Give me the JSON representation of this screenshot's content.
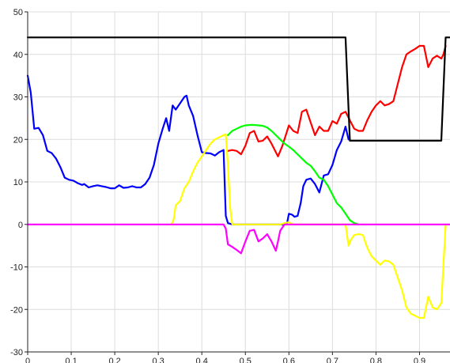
{
  "chart_data": {
    "type": "line",
    "title": "",
    "xlabel": "",
    "ylabel": "",
    "xlim": [
      0,
      0.97
    ],
    "ylim": [
      -30,
      50
    ],
    "grid": true,
    "legend": "none",
    "x_ticks": [
      0,
      0.1,
      0.2,
      0.3,
      0.4,
      0.5,
      0.6,
      0.7,
      0.8,
      0.9
    ],
    "x_tick_labels": [
      "0",
      "0.1",
      "0.2",
      "0.3",
      "0.4",
      "0.5",
      "0.6",
      "0.7",
      "0.8",
      "0.9"
    ],
    "y_ticks": [
      -30,
      -20,
      -10,
      0,
      10,
      20,
      30,
      40,
      50
    ],
    "y_tick_labels": [
      "-30",
      "-20",
      "-10",
      "0",
      "10",
      "20",
      "30",
      "40",
      "50"
    ],
    "series": [
      {
        "color": "#0000ff",
        "points": [
          [
            0,
            35
          ],
          [
            0.007,
            31
          ],
          [
            0.015,
            22.5
          ],
          [
            0.025,
            22.7
          ],
          [
            0.035,
            21
          ],
          [
            0.045,
            17.3
          ],
          [
            0.055,
            16.8
          ],
          [
            0.065,
            15.5
          ],
          [
            0.075,
            13.5
          ],
          [
            0.085,
            11
          ],
          [
            0.095,
            10.5
          ],
          [
            0.105,
            10.3
          ],
          [
            0.115,
            9.7
          ],
          [
            0.125,
            9.3
          ],
          [
            0.13,
            9.5
          ],
          [
            0.14,
            8.7
          ],
          [
            0.15,
            9
          ],
          [
            0.16,
            9.2
          ],
          [
            0.17,
            9
          ],
          [
            0.18,
            8.8
          ],
          [
            0.19,
            8.5
          ],
          [
            0.2,
            8.5
          ],
          [
            0.21,
            9.2
          ],
          [
            0.22,
            8.6
          ],
          [
            0.23,
            8.7
          ],
          [
            0.24,
            9
          ],
          [
            0.25,
            8.7
          ],
          [
            0.26,
            8.7
          ],
          [
            0.27,
            9.5
          ],
          [
            0.28,
            11
          ],
          [
            0.29,
            14
          ],
          [
            0.3,
            19
          ],
          [
            0.31,
            22.5
          ],
          [
            0.318,
            25
          ],
          [
            0.325,
            22
          ],
          [
            0.333,
            28
          ],
          [
            0.34,
            27
          ],
          [
            0.35,
            28.5
          ],
          [
            0.36,
            30
          ],
          [
            0.365,
            30.3
          ],
          [
            0.37,
            28
          ],
          [
            0.38,
            25.5
          ],
          [
            0.39,
            21
          ],
          [
            0.4,
            17
          ],
          [
            0.41,
            16.8
          ],
          [
            0.42,
            16.7
          ],
          [
            0.43,
            16.2
          ],
          [
            0.44,
            17
          ],
          [
            0.45,
            17.5
          ],
          [
            0.455,
            2
          ],
          [
            0.46,
            0.3
          ],
          [
            0.47,
            0
          ],
          [
            0.595,
            0
          ],
          [
            0.6,
            2.5
          ],
          [
            0.607,
            2.3
          ],
          [
            0.613,
            1.8
          ],
          [
            0.62,
            2
          ],
          [
            0.627,
            5
          ],
          [
            0.633,
            9
          ],
          [
            0.64,
            10.5
          ],
          [
            0.65,
            10.8
          ],
          [
            0.66,
            9.5
          ],
          [
            0.67,
            7.5
          ],
          [
            0.68,
            11.5
          ],
          [
            0.69,
            11.8
          ],
          [
            0.7,
            14
          ],
          [
            0.71,
            17.5
          ],
          [
            0.72,
            19.5
          ],
          [
            0.73,
            23
          ],
          [
            0.737,
            20
          ]
        ]
      },
      {
        "color": "#ff0000",
        "points": [
          [
            0.46,
            17.3
          ],
          [
            0.47,
            17.5
          ],
          [
            0.48,
            17.3
          ],
          [
            0.49,
            16.5
          ],
          [
            0.5,
            18.5
          ],
          [
            0.51,
            21.5
          ],
          [
            0.52,
            22
          ],
          [
            0.53,
            19.5
          ],
          [
            0.54,
            19.7
          ],
          [
            0.55,
            20.7
          ],
          [
            0.56,
            19
          ],
          [
            0.575,
            16
          ],
          [
            0.585,
            18.5
          ],
          [
            0.6,
            23.3
          ],
          [
            0.61,
            22
          ],
          [
            0.62,
            21.5
          ],
          [
            0.63,
            26.5
          ],
          [
            0.64,
            27
          ],
          [
            0.65,
            24
          ],
          [
            0.66,
            21
          ],
          [
            0.67,
            23
          ],
          [
            0.68,
            22
          ],
          [
            0.69,
            22
          ],
          [
            0.7,
            24.3
          ],
          [
            0.71,
            23.7
          ],
          [
            0.72,
            26
          ],
          [
            0.73,
            26.5
          ],
          [
            0.74,
            24.5
          ],
          [
            0.75,
            22.5
          ],
          [
            0.76,
            22
          ],
          [
            0.77,
            22
          ],
          [
            0.78,
            24.5
          ],
          [
            0.79,
            26.5
          ],
          [
            0.8,
            28
          ],
          [
            0.81,
            29
          ],
          [
            0.82,
            28
          ],
          [
            0.83,
            28.3
          ],
          [
            0.84,
            29
          ],
          [
            0.85,
            33
          ],
          [
            0.86,
            37
          ],
          [
            0.87,
            40
          ],
          [
            0.88,
            40.7
          ],
          [
            0.89,
            41.3
          ],
          [
            0.9,
            42
          ],
          [
            0.91,
            42
          ],
          [
            0.92,
            37
          ],
          [
            0.93,
            39
          ],
          [
            0.94,
            39.7
          ],
          [
            0.95,
            39
          ],
          [
            0.955,
            40
          ],
          [
            0.96,
            42
          ]
        ]
      },
      {
        "color": "#00ff00",
        "points": [
          [
            0.46,
            21
          ],
          [
            0.47,
            22
          ],
          [
            0.48,
            22.5
          ],
          [
            0.49,
            23
          ],
          [
            0.5,
            23.3
          ],
          [
            0.51,
            23.4
          ],
          [
            0.52,
            23.4
          ],
          [
            0.53,
            23.3
          ],
          [
            0.54,
            23.2
          ],
          [
            0.55,
            22.8
          ],
          [
            0.56,
            22
          ],
          [
            0.57,
            21
          ],
          [
            0.58,
            20
          ],
          [
            0.59,
            19
          ],
          [
            0.6,
            18.3
          ],
          [
            0.61,
            17.5
          ],
          [
            0.62,
            16.5
          ],
          [
            0.63,
            15.5
          ],
          [
            0.64,
            14.5
          ],
          [
            0.65,
            13.8
          ],
          [
            0.66,
            12.5
          ],
          [
            0.67,
            11
          ],
          [
            0.68,
            10.5
          ],
          [
            0.69,
            9
          ],
          [
            0.7,
            7
          ],
          [
            0.71,
            5
          ],
          [
            0.72,
            4
          ],
          [
            0.73,
            2.5
          ],
          [
            0.74,
            1
          ],
          [
            0.75,
            0.3
          ],
          [
            0.76,
            0
          ]
        ]
      },
      {
        "color": "#ffff00",
        "points": [
          [
            0.33,
            0
          ],
          [
            0.335,
            1
          ],
          [
            0.34,
            4.5
          ],
          [
            0.35,
            5.5
          ],
          [
            0.36,
            8.5
          ],
          [
            0.37,
            10
          ],
          [
            0.38,
            12.5
          ],
          [
            0.39,
            14.5
          ],
          [
            0.4,
            16
          ],
          [
            0.41,
            17.5
          ],
          [
            0.42,
            19
          ],
          [
            0.43,
            20
          ],
          [
            0.44,
            20.5
          ],
          [
            0.45,
            21
          ],
          [
            0.455,
            21.2
          ],
          [
            0.46,
            14
          ],
          [
            0.465,
            4
          ],
          [
            0.47,
            0
          ],
          [
            0.58,
            0
          ],
          [
            0.59,
            0.3
          ],
          [
            0.6,
            0.5
          ],
          [
            0.61,
            0
          ],
          [
            0.73,
            0
          ],
          [
            0.737,
            -5
          ],
          [
            0.743,
            -3.5
          ],
          [
            0.75,
            -2.5
          ],
          [
            0.76,
            -2.3
          ],
          [
            0.77,
            -2.5
          ],
          [
            0.78,
            -5.5
          ],
          [
            0.79,
            -7.5
          ],
          [
            0.8,
            -8.5
          ],
          [
            0.81,
            -9.5
          ],
          [
            0.82,
            -8.5
          ],
          [
            0.83,
            -8.7
          ],
          [
            0.84,
            -9.5
          ],
          [
            0.85,
            -12.5
          ],
          [
            0.86,
            -15.5
          ],
          [
            0.87,
            -19.5
          ],
          [
            0.88,
            -21
          ],
          [
            0.89,
            -21.5
          ],
          [
            0.9,
            -22
          ],
          [
            0.91,
            -22
          ],
          [
            0.92,
            -17
          ],
          [
            0.93,
            -19.5
          ],
          [
            0.94,
            -20
          ],
          [
            0.95,
            -18.5
          ],
          [
            0.96,
            0
          ]
        ]
      },
      {
        "color": "#ff00ff",
        "points": [
          [
            0,
            0
          ],
          [
            0.45,
            0
          ],
          [
            0.455,
            -1
          ],
          [
            0.46,
            -4.7
          ],
          [
            0.47,
            -5.3
          ],
          [
            0.48,
            -6
          ],
          [
            0.49,
            -6.8
          ],
          [
            0.5,
            -4
          ],
          [
            0.51,
            -1.5
          ],
          [
            0.52,
            -1.3
          ],
          [
            0.53,
            -4
          ],
          [
            0.54,
            -3.3
          ],
          [
            0.55,
            -2.3
          ],
          [
            0.56,
            -4
          ],
          [
            0.57,
            -6.2
          ],
          [
            0.575,
            -4
          ],
          [
            0.58,
            -1.5
          ],
          [
            0.59,
            0
          ],
          [
            0.97,
            0
          ]
        ]
      },
      {
        "color": "#000000",
        "points": [
          [
            0,
            44
          ],
          [
            0.73,
            44
          ],
          [
            0.74,
            19.7
          ],
          [
            0.95,
            19.7
          ],
          [
            0.96,
            44
          ],
          [
            0.97,
            44
          ]
        ]
      }
    ]
  }
}
